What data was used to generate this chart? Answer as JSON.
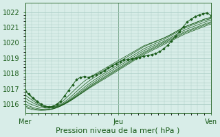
{
  "title": "",
  "xlabel": "Pression niveau de la mer( hPa )",
  "bg_color": "#d8ede8",
  "plot_bg_color": "#d8ede8",
  "grid_color": "#aaccc5",
  "line_color": "#1a5c1a",
  "marker_color": "#1a5c1a",
  "ylim": [
    1015.4,
    1022.6
  ],
  "yticks": [
    1016,
    1017,
    1018,
    1019,
    1020,
    1021,
    1022
  ],
  "day_labels": [
    "Mer",
    "Jeu",
    "Ven"
  ],
  "day_positions": [
    0.0,
    0.5,
    1.0
  ],
  "jeu_line": 0.5,
  "n_points": 48,
  "xlabel_fontsize": 8,
  "tick_fontsize": 7,
  "label_fontsize": 7,
  "series": [
    [
      1016.85,
      1016.6,
      1016.35,
      1016.15,
      1015.98,
      1015.88,
      1015.82,
      1015.85,
      1015.95,
      1016.1,
      1016.3,
      1016.55,
      1016.8,
      1017.05,
      1017.28,
      1017.5,
      1017.68,
      1017.85,
      1018.0,
      1018.15,
      1018.3,
      1018.45,
      1018.6,
      1018.75,
      1018.9,
      1019.05,
      1019.2,
      1019.35,
      1019.5,
      1019.65,
      1019.8,
      1019.9,
      1020.0,
      1020.1,
      1020.2,
      1020.3,
      1020.42,
      1020.55,
      1020.7,
      1020.85,
      1021.0,
      1021.1,
      1021.2,
      1021.3,
      1021.4,
      1021.5,
      1021.6,
      1021.65
    ],
    [
      1016.6,
      1016.4,
      1016.22,
      1016.05,
      1015.9,
      1015.82,
      1015.78,
      1015.8,
      1015.88,
      1016.0,
      1016.15,
      1016.35,
      1016.58,
      1016.82,
      1017.05,
      1017.28,
      1017.48,
      1017.66,
      1017.82,
      1017.98,
      1018.14,
      1018.3,
      1018.46,
      1018.62,
      1018.78,
      1018.94,
      1019.1,
      1019.26,
      1019.42,
      1019.58,
      1019.74,
      1019.85,
      1019.96,
      1020.07,
      1020.18,
      1020.29,
      1020.42,
      1020.56,
      1020.7,
      1020.84,
      1020.98,
      1021.1,
      1021.2,
      1021.3,
      1021.4,
      1021.5,
      1021.58,
      1021.62
    ],
    [
      1016.4,
      1016.22,
      1016.08,
      1015.96,
      1015.86,
      1015.79,
      1015.76,
      1015.77,
      1015.84,
      1015.94,
      1016.08,
      1016.25,
      1016.45,
      1016.66,
      1016.88,
      1017.1,
      1017.3,
      1017.49,
      1017.66,
      1017.83,
      1018.0,
      1018.16,
      1018.32,
      1018.48,
      1018.64,
      1018.8,
      1018.96,
      1019.12,
      1019.28,
      1019.44,
      1019.6,
      1019.72,
      1019.84,
      1019.96,
      1020.08,
      1020.2,
      1020.34,
      1020.48,
      1020.62,
      1020.76,
      1020.9,
      1021.02,
      1021.12,
      1021.22,
      1021.32,
      1021.42,
      1021.5,
      1021.56
    ],
    [
      1016.2,
      1016.05,
      1015.93,
      1015.84,
      1015.77,
      1015.74,
      1015.73,
      1015.76,
      1015.82,
      1015.92,
      1016.05,
      1016.2,
      1016.38,
      1016.58,
      1016.78,
      1016.98,
      1017.18,
      1017.36,
      1017.54,
      1017.71,
      1017.88,
      1018.04,
      1018.2,
      1018.36,
      1018.52,
      1018.68,
      1018.84,
      1019.0,
      1019.16,
      1019.32,
      1019.48,
      1019.6,
      1019.73,
      1019.85,
      1019.97,
      1020.09,
      1020.22,
      1020.36,
      1020.5,
      1020.64,
      1020.78,
      1020.9,
      1021.0,
      1021.1,
      1021.2,
      1021.3,
      1021.4,
      1021.48
    ],
    [
      1016.0,
      1015.88,
      1015.78,
      1015.71,
      1015.67,
      1015.65,
      1015.66,
      1015.7,
      1015.78,
      1015.89,
      1016.02,
      1016.17,
      1016.34,
      1016.52,
      1016.71,
      1016.9,
      1017.09,
      1017.27,
      1017.44,
      1017.61,
      1017.77,
      1017.93,
      1018.09,
      1018.25,
      1018.41,
      1018.57,
      1018.73,
      1018.89,
      1019.05,
      1019.21,
      1019.37,
      1019.5,
      1019.63,
      1019.76,
      1019.89,
      1020.02,
      1020.15,
      1020.28,
      1020.41,
      1020.54,
      1020.67,
      1020.78,
      1020.88,
      1020.98,
      1021.08,
      1021.18,
      1021.28,
      1021.36
    ],
    [
      1015.88,
      1015.78,
      1015.7,
      1015.65,
      1015.62,
      1015.62,
      1015.64,
      1015.69,
      1015.77,
      1015.88,
      1016.01,
      1016.16,
      1016.32,
      1016.5,
      1016.68,
      1016.86,
      1017.04,
      1017.21,
      1017.38,
      1017.54,
      1017.7,
      1017.86,
      1018.02,
      1018.18,
      1018.34,
      1018.5,
      1018.66,
      1018.82,
      1018.98,
      1019.14,
      1019.3,
      1019.43,
      1019.56,
      1019.69,
      1019.82,
      1019.95,
      1020.08,
      1020.21,
      1020.34,
      1020.47,
      1020.6,
      1020.71,
      1020.81,
      1020.91,
      1021.01,
      1021.11,
      1021.21,
      1021.29
    ],
    [
      1015.78,
      1015.7,
      1015.64,
      1015.61,
      1015.59,
      1015.6,
      1015.63,
      1015.68,
      1015.76,
      1015.87,
      1016.0,
      1016.14,
      1016.3,
      1016.47,
      1016.65,
      1016.82,
      1017.0,
      1017.16,
      1017.32,
      1017.48,
      1017.63,
      1017.79,
      1017.95,
      1018.11,
      1018.27,
      1018.43,
      1018.59,
      1018.75,
      1018.91,
      1019.07,
      1019.22,
      1019.35,
      1019.48,
      1019.61,
      1019.74,
      1019.87,
      1020.0,
      1020.13,
      1020.26,
      1020.39,
      1020.52,
      1020.63,
      1020.73,
      1020.83,
      1020.93,
      1021.03,
      1021.13,
      1021.22
    ]
  ],
  "special_series_data": [
    [
      1016.85,
      1016.65,
      1016.4,
      1016.2,
      1016.0,
      1015.88,
      1015.82,
      1015.85,
      1016.0,
      1016.2,
      1016.55,
      1016.9,
      1017.25,
      1017.6,
      1017.75,
      1017.8,
      1017.75,
      1017.82,
      1017.92,
      1018.05,
      1018.2,
      1018.35,
      1018.5,
      1018.65,
      1018.78,
      1018.88,
      1018.9,
      1018.95,
      1019.0,
      1019.05,
      1019.12,
      1019.18,
      1019.22,
      1019.3,
      1019.42,
      1019.6,
      1019.82,
      1020.1,
      1020.4,
      1020.72,
      1021.05,
      1021.35,
      1021.55,
      1021.7,
      1021.82,
      1021.9,
      1021.95,
      1021.78
    ]
  ]
}
